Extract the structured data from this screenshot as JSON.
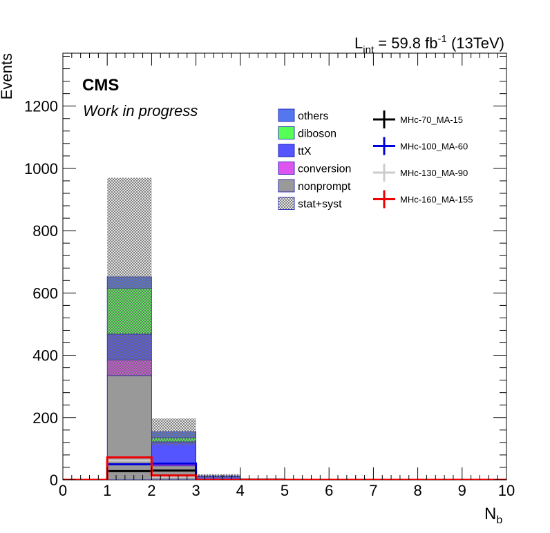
{
  "header": {
    "lumi_label": "L",
    "lumi_sub": "int",
    "lumi_value": " = 59.8 fb",
    "lumi_sup": "-1",
    "energy": " (13TeV)"
  },
  "badges": {
    "experiment": "CMS",
    "status": "Work in progress"
  },
  "chart_data": {
    "type": "bar",
    "stacked": true,
    "xlabel_main": "N",
    "xlabel_sub": "b",
    "ylabel": "Events",
    "xlim": [
      0,
      10
    ],
    "ylim": [
      0,
      1370
    ],
    "x_ticks": [
      0,
      1,
      2,
      3,
      4,
      5,
      6,
      7,
      8,
      9,
      10
    ],
    "y_ticks": [
      0,
      200,
      400,
      600,
      800,
      1000,
      1200
    ],
    "bin_edges": [
      0,
      1,
      2,
      3,
      4,
      5,
      6,
      7,
      8,
      9,
      10
    ],
    "background_series": [
      {
        "name": "nonprompt",
        "color": "#999999",
        "values": [
          0,
          335,
          45,
          2,
          0,
          0,
          0,
          0,
          0,
          0
        ]
      },
      {
        "name": "conversion",
        "color": "#dd55ee",
        "values": [
          0,
          50,
          5,
          0,
          0,
          0,
          0,
          0,
          0,
          0
        ]
      },
      {
        "name": "ttX",
        "color": "#5555ff",
        "values": [
          0,
          83,
          72,
          8,
          2,
          0,
          0,
          0,
          0,
          0
        ]
      },
      {
        "name": "diboson",
        "color": "#55ff55",
        "values": [
          0,
          147,
          13,
          1,
          0,
          0,
          0,
          0,
          0,
          0
        ]
      },
      {
        "name": "others",
        "color": "#5577ee",
        "values": [
          0,
          37,
          20,
          2,
          1,
          0,
          0,
          0,
          0,
          0
        ]
      }
    ],
    "uncertainty": {
      "name": "stat+syst",
      "center": [
        0,
        652,
        155,
        13,
        3,
        0,
        0,
        0,
        0,
        0
      ],
      "low": [
        0,
        335,
        112,
        5,
        0,
        0,
        0,
        0,
        0,
        0
      ],
      "high": [
        0,
        970,
        197,
        18,
        5,
        0,
        0,
        0,
        0,
        0
      ]
    },
    "signal_series": [
      {
        "name": "MHc-70_MA-15",
        "color": "#000000",
        "values": [
          0,
          28,
          30,
          0,
          0,
          0,
          0,
          0,
          0,
          0
        ]
      },
      {
        "name": "MHc-100_MA-60",
        "color": "#0000dd",
        "values": [
          0,
          50,
          52,
          0,
          0,
          0,
          0,
          0,
          0,
          0
        ]
      },
      {
        "name": "MHc-130_MA-90",
        "color": "#cccccc",
        "values": [
          0,
          62,
          10,
          0,
          0,
          0,
          0,
          0,
          0,
          0
        ]
      },
      {
        "name": "MHc-160_MA-155",
        "color": "#ee0000",
        "values": [
          0,
          72,
          14,
          0,
          0,
          0,
          0,
          0,
          0,
          0
        ]
      }
    ],
    "legend_left_order": [
      "others",
      "diboson",
      "ttX",
      "conversion",
      "nonprompt",
      "stat+syst"
    ]
  }
}
